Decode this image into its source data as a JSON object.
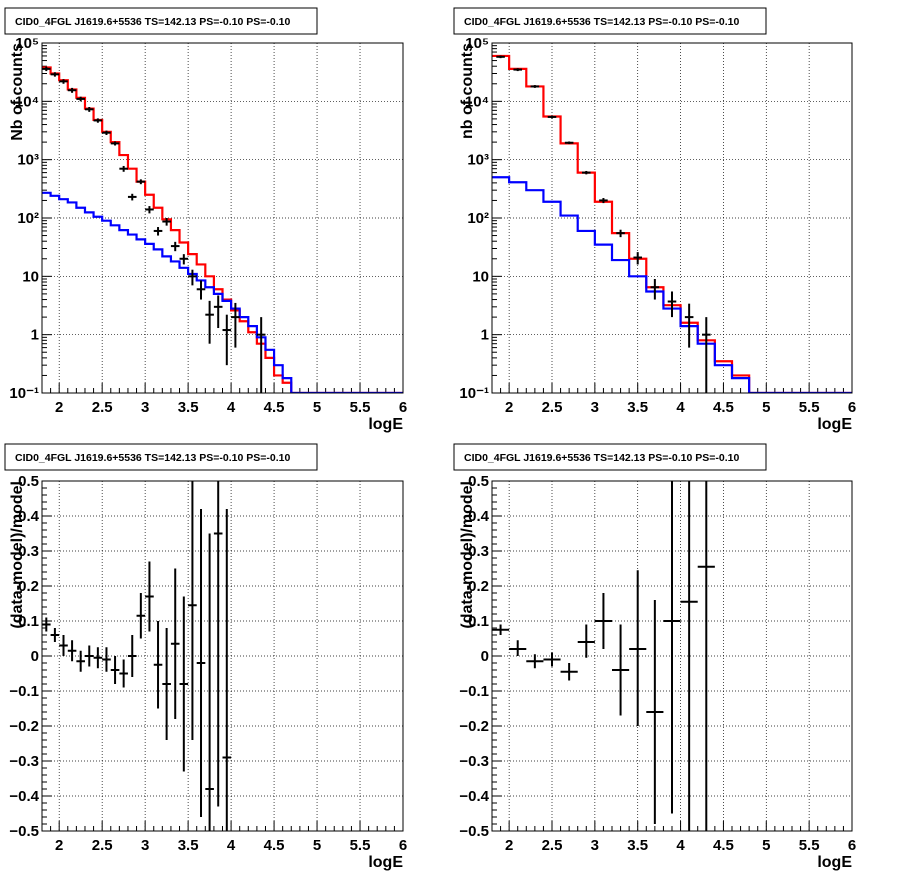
{
  "colors": {
    "data": "#000000",
    "total_model": "#ff0000",
    "component_model": "#0000ff"
  },
  "chart_data": [
    {
      "type": "line",
      "title": "CID0_4FGL J1619.6+5536 TS=142.13 PS=-0.10 PS=-0.10",
      "xlabel": "logE",
      "ylabel": "Nb of counts",
      "xlim": [
        1.8,
        6
      ],
      "ylim": [
        0.1,
        100000
      ],
      "yscale": "log",
      "grid": true,
      "xticks": [
        "2",
        "2.5",
        "3",
        "3.5",
        "4",
        "4.5",
        "5",
        "5.5",
        "6"
      ],
      "yticks": [
        "10⁻¹",
        "1",
        "10",
        "10²",
        "10³",
        "10⁴",
        "10⁵"
      ],
      "bin_edges": [
        1.8,
        1.9,
        2.0,
        2.1,
        2.2,
        2.3,
        2.4,
        2.5,
        2.6,
        2.7,
        2.8,
        2.9,
        3.0,
        3.1,
        3.2,
        3.3,
        3.4,
        3.5,
        3.6,
        3.7,
        3.8,
        3.9,
        4.0,
        4.1,
        4.2,
        4.3,
        4.4,
        4.5,
        4.6,
        4.7,
        4.8,
        4.9,
        5.0,
        5.1,
        5.2,
        5.3,
        5.4,
        5.5,
        5.6,
        5.7,
        5.8,
        5.9,
        6.0
      ],
      "series": [
        {
          "role": "total_model",
          "values": [
            38000,
            30000,
            23000,
            16000,
            11500,
            7500,
            4800,
            3000,
            2000,
            1200,
            700,
            420,
            250,
            150,
            95,
            62,
            38,
            24,
            16,
            10,
            6,
            4,
            2.6,
            1.7,
            1.1,
            0.7,
            0.4,
            0.2,
            0.15,
            0.1,
            0.1,
            0.1,
            0.1,
            0.1,
            0.1,
            0.1,
            0.1,
            0.1,
            0.1,
            0.1,
            0.1,
            0.1
          ]
        },
        {
          "role": "component_model",
          "values": [
            270,
            240,
            210,
            185,
            150,
            125,
            105,
            90,
            75,
            62,
            52,
            43,
            36,
            29,
            22,
            18,
            14,
            11,
            8.5,
            6.5,
            5,
            3.8,
            2.8,
            2,
            1.4,
            0.9,
            0.55,
            0.3,
            0.18,
            0.1,
            0.1,
            0.1,
            0.1,
            0.1,
            0.1,
            0.1,
            0.1,
            0.1,
            0.1,
            0.1,
            0.1,
            0.1
          ]
        },
        {
          "role": "data",
          "points": [
            {
              "x": 1.85,
              "y": 36000,
              "lo": 33000,
              "hi": 39000
            },
            {
              "x": 1.95,
              "y": 29000,
              "lo": 26500,
              "hi": 31500
            },
            {
              "x": 2.05,
              "y": 22000,
              "lo": 20000,
              "hi": 24000
            },
            {
              "x": 2.15,
              "y": 15500,
              "lo": 14000,
              "hi": 17000
            },
            {
              "x": 2.25,
              "y": 11000,
              "lo": 10000,
              "hi": 12000
            },
            {
              "x": 2.35,
              "y": 7300,
              "lo": 6600,
              "hi": 8000
            },
            {
              "x": 2.45,
              "y": 4700,
              "lo": 4300,
              "hi": 5100
            },
            {
              "x": 2.55,
              "y": 2900,
              "lo": 2650,
              "hi": 3150
            },
            {
              "x": 2.65,
              "y": 1900,
              "lo": 1750,
              "hi": 2050
            },
            {
              "x": 2.75,
              "y": 700,
              "lo": 620,
              "hi": 780
            },
            {
              "x": 2.85,
              "y": 230,
              "lo": 200,
              "hi": 260
            },
            {
              "x": 2.95,
              "y": 420,
              "lo": 380,
              "hi": 460
            },
            {
              "x": 3.05,
              "y": 140,
              "lo": 120,
              "hi": 160
            },
            {
              "x": 3.15,
              "y": 60,
              "lo": 50,
              "hi": 70
            },
            {
              "x": 3.25,
              "y": 87,
              "lo": 74,
              "hi": 100
            },
            {
              "x": 3.35,
              "y": 33,
              "lo": 27,
              "hi": 39
            },
            {
              "x": 3.45,
              "y": 20,
              "lo": 16,
              "hi": 24
            },
            {
              "x": 3.55,
              "y": 10,
              "lo": 7,
              "hi": 13
            },
            {
              "x": 3.65,
              "y": 6,
              "lo": 4,
              "hi": 8.5
            },
            {
              "x": 3.75,
              "y": 2.2,
              "lo": 0.7,
              "hi": 3.8
            },
            {
              "x": 3.85,
              "y": 3,
              "lo": 1.3,
              "hi": 4.7
            },
            {
              "x": 3.95,
              "y": 1.2,
              "lo": 0.3,
              "hi": 2.2
            },
            {
              "x": 4.05,
              "y": 2,
              "lo": 0.6,
              "hi": 3.5
            },
            {
              "x": 4.35,
              "y": 1,
              "lo": 0.1,
              "hi": 2
            }
          ]
        }
      ]
    },
    {
      "type": "line",
      "title": "CID0_4FGL J1619.6+5536 TS=142.13 PS=-0.10 PS=-0.10",
      "xlabel": "logE",
      "ylabel": "nb of counts",
      "xlim": [
        1.8,
        6
      ],
      "ylim": [
        0.1,
        100000
      ],
      "yscale": "log",
      "grid": true,
      "xticks": [
        "2",
        "2.5",
        "3",
        "3.5",
        "4",
        "4.5",
        "5",
        "5.5",
        "6"
      ],
      "yticks": [
        "10⁻¹",
        "1",
        "10",
        "10²",
        "10³",
        "10⁴",
        "10⁵"
      ],
      "bin_edges": [
        1.8,
        2.0,
        2.2,
        2.4,
        2.6,
        2.8,
        3.0,
        3.2,
        3.4,
        3.6,
        3.8,
        4.0,
        4.2,
        4.4,
        4.6,
        4.8,
        5.0,
        5.2,
        5.4,
        5.6,
        5.8,
        6.0
      ],
      "series": [
        {
          "role": "total_model",
          "values": [
            60000,
            36000,
            18000,
            5500,
            1900,
            600,
            190,
            55,
            20,
            6.5,
            3.2,
            1.6,
            0.8,
            0.35,
            0.2,
            0.1,
            0.1,
            0.1,
            0.1,
            0.1,
            0.1
          ]
        },
        {
          "role": "component_model",
          "values": [
            500,
            410,
            300,
            190,
            110,
            60,
            35,
            19,
            10,
            5.5,
            2.8,
            1.4,
            0.7,
            0.3,
            0.18,
            0.1,
            0.1,
            0.1,
            0.1,
            0.1,
            0.1
          ]
        },
        {
          "role": "data",
          "points": [
            {
              "x": 1.9,
              "y": 58000,
              "lo": 55000,
              "hi": 61000
            },
            {
              "x": 2.1,
              "y": 35000,
              "lo": 33000,
              "hi": 37000
            },
            {
              "x": 2.3,
              "y": 18000,
              "lo": 17000,
              "hi": 19000
            },
            {
              "x": 2.5,
              "y": 5400,
              "lo": 5100,
              "hi": 5700
            },
            {
              "x": 2.7,
              "y": 1950,
              "lo": 1850,
              "hi": 2050
            },
            {
              "x": 2.9,
              "y": 600,
              "lo": 560,
              "hi": 640
            },
            {
              "x": 3.1,
              "y": 200,
              "lo": 180,
              "hi": 220
            },
            {
              "x": 3.3,
              "y": 55,
              "lo": 47,
              "hi": 63
            },
            {
              "x": 3.5,
              "y": 21,
              "lo": 16,
              "hi": 26
            },
            {
              "x": 3.7,
              "y": 6.5,
              "lo": 4,
              "hi": 9
            },
            {
              "x": 3.9,
              "y": 3.7,
              "lo": 2,
              "hi": 5.5
            },
            {
              "x": 4.1,
              "y": 2,
              "lo": 0.6,
              "hi": 3.4
            },
            {
              "x": 4.3,
              "y": 1,
              "lo": 0.1,
              "hi": 2
            }
          ]
        }
      ]
    },
    {
      "type": "scatter",
      "title": "CID0_4FGL J1619.6+5536 TS=142.13 PS=-0.10 PS=-0.10",
      "xlabel": "logE",
      "ylabel": "(data-model)/model",
      "xlim": [
        1.8,
        6
      ],
      "ylim": [
        -0.5,
        0.5
      ],
      "grid": true,
      "xticks": [
        "2",
        "2.5",
        "3",
        "3.5",
        "4",
        "4.5",
        "5",
        "5.5",
        "6"
      ],
      "yticks": [
        "−0.5",
        "−0.4",
        "−0.3",
        "−0.2",
        "−0.1",
        "0",
        "0.1",
        "0.2",
        "0.3",
        "0.4",
        "0.5"
      ],
      "series": [
        {
          "role": "data",
          "xerr": 0.05,
          "points": [
            {
              "x": 1.85,
              "y": 0.09,
              "lo": 0.07,
              "hi": 0.11
            },
            {
              "x": 1.95,
              "y": 0.06,
              "lo": 0.04,
              "hi": 0.08
            },
            {
              "x": 2.05,
              "y": 0.03,
              "lo": 0.0,
              "hi": 0.06
            },
            {
              "x": 2.15,
              "y": 0.015,
              "lo": -0.015,
              "hi": 0.045
            },
            {
              "x": 2.25,
              "y": -0.015,
              "lo": -0.045,
              "hi": 0.015
            },
            {
              "x": 2.35,
              "y": 0.0,
              "lo": -0.03,
              "hi": 0.03
            },
            {
              "x": 2.45,
              "y": -0.005,
              "lo": -0.035,
              "hi": 0.025
            },
            {
              "x": 2.55,
              "y": -0.01,
              "lo": -0.045,
              "hi": 0.025
            },
            {
              "x": 2.65,
              "y": -0.04,
              "lo": -0.08,
              "hi": 0.0
            },
            {
              "x": 2.75,
              "y": -0.05,
              "lo": -0.09,
              "hi": -0.01
            },
            {
              "x": 2.85,
              "y": 0.0,
              "lo": -0.06,
              "hi": 0.06
            },
            {
              "x": 2.95,
              "y": 0.115,
              "lo": 0.05,
              "hi": 0.18
            },
            {
              "x": 3.05,
              "y": 0.17,
              "lo": 0.07,
              "hi": 0.27
            },
            {
              "x": 3.15,
              "y": -0.025,
              "lo": -0.15,
              "hi": 0.1
            },
            {
              "x": 3.25,
              "y": -0.08,
              "lo": -0.24,
              "hi": 0.08
            },
            {
              "x": 3.35,
              "y": 0.035,
              "lo": -0.18,
              "hi": 0.25
            },
            {
              "x": 3.45,
              "y": -0.08,
              "lo": -0.33,
              "hi": 0.17
            },
            {
              "x": 3.55,
              "y": 0.145,
              "lo": -0.24,
              "hi": 0.5
            },
            {
              "x": 3.65,
              "y": -0.02,
              "lo": -0.46,
              "hi": 0.42
            },
            {
              "x": 3.75,
              "y": -0.38,
              "lo": -0.5,
              "hi": 0.35
            },
            {
              "x": 3.85,
              "y": 0.35,
              "lo": -0.43,
              "hi": 0.5
            },
            {
              "x": 3.95,
              "y": -0.29,
              "lo": -0.5,
              "hi": 0.42
            }
          ]
        }
      ]
    },
    {
      "type": "scatter",
      "title": "CID0_4FGL J1619.6+5536 TS=142.13 PS=-0.10 PS=-0.10",
      "xlabel": "logE",
      "ylabel": "(data-model)/model",
      "xlim": [
        1.8,
        6
      ],
      "ylim": [
        -0.5,
        0.5
      ],
      "grid": true,
      "xticks": [
        "2",
        "2.5",
        "3",
        "3.5",
        "4",
        "4.5",
        "5",
        "5.5",
        "6"
      ],
      "yticks": [
        "−0.5",
        "−0.4",
        "−0.3",
        "−0.2",
        "−0.1",
        "0",
        "0.1",
        "0.2",
        "0.3",
        "0.4",
        "0.5"
      ],
      "series": [
        {
          "role": "data",
          "xerr": 0.1,
          "points": [
            {
              "x": 1.9,
              "y": 0.075,
              "lo": 0.06,
              "hi": 0.09
            },
            {
              "x": 2.1,
              "y": 0.02,
              "lo": 0.0,
              "hi": 0.045
            },
            {
              "x": 2.3,
              "y": -0.015,
              "lo": -0.035,
              "hi": 0.005
            },
            {
              "x": 2.5,
              "y": -0.01,
              "lo": -0.03,
              "hi": 0.01
            },
            {
              "x": 2.7,
              "y": -0.045,
              "lo": -0.07,
              "hi": -0.02
            },
            {
              "x": 2.9,
              "y": 0.04,
              "lo": -0.005,
              "hi": 0.09
            },
            {
              "x": 3.1,
              "y": 0.1,
              "lo": 0.02,
              "hi": 0.18
            },
            {
              "x": 3.3,
              "y": -0.04,
              "lo": -0.17,
              "hi": 0.09
            },
            {
              "x": 3.5,
              "y": 0.02,
              "lo": -0.2,
              "hi": 0.245
            },
            {
              "x": 3.7,
              "y": -0.16,
              "lo": -0.48,
              "hi": 0.16
            },
            {
              "x": 3.9,
              "y": 0.1,
              "lo": -0.45,
              "hi": 0.5
            },
            {
              "x": 4.1,
              "y": 0.155,
              "lo": -0.5,
              "hi": 0.5
            },
            {
              "x": 4.3,
              "y": 0.255,
              "lo": -0.5,
              "hi": 0.5
            }
          ]
        }
      ]
    }
  ]
}
